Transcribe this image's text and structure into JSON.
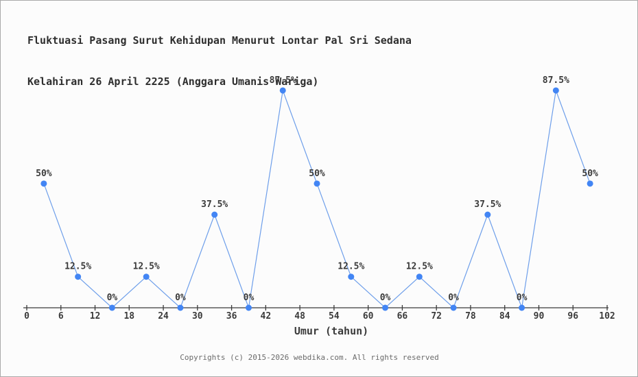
{
  "title": {
    "line1": "Fluktuasi Pasang Surut Kehidupan Menurut Lontar Pal Sri Sedana",
    "line2": "Kelahiran 26 April 2225 (Anggara Umanis Wariga)"
  },
  "chart_data": {
    "type": "line",
    "x": [
      3,
      9,
      15,
      21,
      27,
      33,
      39,
      45,
      51,
      57,
      63,
      69,
      75,
      81,
      87,
      93,
      99
    ],
    "values": [
      50,
      12.5,
      0,
      12.5,
      0,
      37.5,
      0,
      87.5,
      50,
      12.5,
      0,
      12.5,
      0,
      37.5,
      0,
      87.5,
      50
    ],
    "point_labels": [
      "50%",
      "12.5%",
      "0%",
      "12.5%",
      "0%",
      "37.5%",
      "0%",
      "87.5%",
      "50%",
      "12.5%",
      "0%",
      "12.5%",
      "0%",
      "37.5%",
      "0%",
      "87.5%",
      "50%"
    ],
    "x_ticks": [
      0,
      6,
      12,
      18,
      24,
      30,
      36,
      42,
      48,
      54,
      60,
      66,
      72,
      78,
      84,
      90,
      96,
      102
    ],
    "x_range": [
      0,
      102
    ],
    "y_range": [
      0,
      100
    ],
    "xlabel": "Umur (tahun)",
    "ylabel": "",
    "grid": false,
    "legend": "none",
    "colors": {
      "line": "#6d9eea",
      "marker": "#4285f4",
      "axis": "#3a3a3a",
      "tick_label": "#3a3a3a",
      "point_label": "#3a3a3a"
    }
  },
  "footer": {
    "text": "Copyrights (c) 2015-2026 webdika.com. All rights reserved"
  }
}
